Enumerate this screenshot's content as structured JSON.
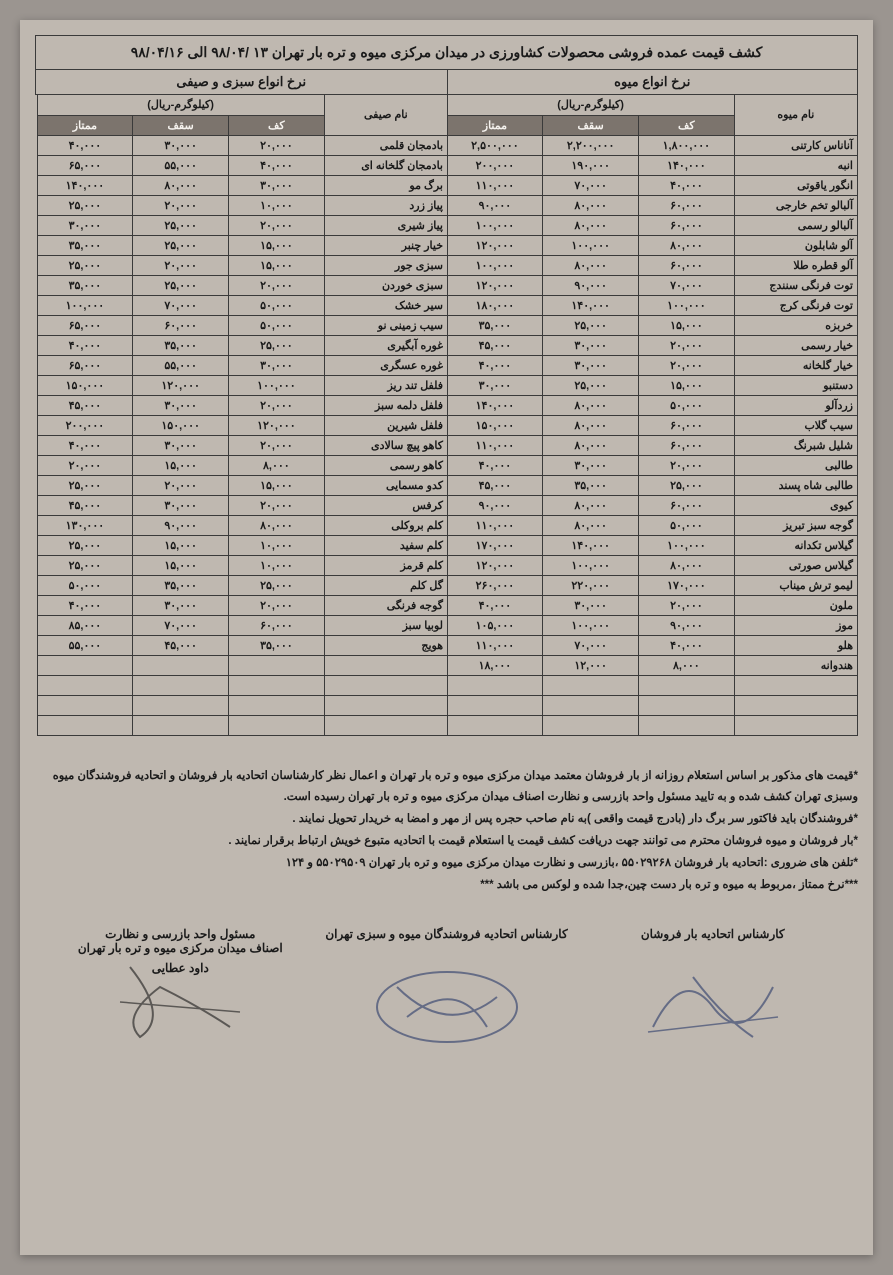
{
  "title": "کشف قیمت عمده فروشی محصولات کشاورزی در میدان مرکزی میوه و تره بار تهران ۱۳ /۹۸/۰۴  الی  ۹۸/۰۴/۱۶",
  "section_fruit": "نرخ انواع میوه",
  "section_veg": "نرخ انواع سبزی و صیفی",
  "unit_label": "(کیلوگرم-ریال)",
  "col_name_fruit": "نام میوه",
  "col_name_veg": "نام صیفی",
  "col_floor": "کف",
  "col_ceil": "سقف",
  "col_premium": "ممتاز",
  "fruits": [
    {
      "name": "آناناس کارتنی",
      "f": "۱,۸۰۰,۰۰۰",
      "c": "۲,۲۰۰,۰۰۰",
      "p": "۲,۵۰۰,۰۰۰"
    },
    {
      "name": "انبه",
      "f": "۱۴۰,۰۰۰",
      "c": "۱۹۰,۰۰۰",
      "p": "۲۰۰,۰۰۰"
    },
    {
      "name": "انگور یاقوتی",
      "f": "۴۰,۰۰۰",
      "c": "۷۰,۰۰۰",
      "p": "۱۱۰,۰۰۰"
    },
    {
      "name": "آلبالو تخم خارجی",
      "f": "۶۰,۰۰۰",
      "c": "۸۰,۰۰۰",
      "p": "۹۰,۰۰۰"
    },
    {
      "name": "آلبالو رسمی",
      "f": "۶۰,۰۰۰",
      "c": "۸۰,۰۰۰",
      "p": "۱۰۰,۰۰۰"
    },
    {
      "name": "آلو شابلون",
      "f": "۸۰,۰۰۰",
      "c": "۱۰۰,۰۰۰",
      "p": "۱۲۰,۰۰۰"
    },
    {
      "name": "آلو قطره طلا",
      "f": "۶۰,۰۰۰",
      "c": "۸۰,۰۰۰",
      "p": "۱۰۰,۰۰۰"
    },
    {
      "name": "توت فرنگی سنندج",
      "f": "۷۰,۰۰۰",
      "c": "۹۰,۰۰۰",
      "p": "۱۲۰,۰۰۰"
    },
    {
      "name": "توت فرنگی کرج",
      "f": "۱۰۰,۰۰۰",
      "c": "۱۴۰,۰۰۰",
      "p": "۱۸۰,۰۰۰"
    },
    {
      "name": "خربزه",
      "f": "۱۵,۰۰۰",
      "c": "۲۵,۰۰۰",
      "p": "۳۵,۰۰۰"
    },
    {
      "name": "خیار رسمی",
      "f": "۲۰,۰۰۰",
      "c": "۳۰,۰۰۰",
      "p": "۴۵,۰۰۰"
    },
    {
      "name": "خیار گلخانه",
      "f": "۲۰,۰۰۰",
      "c": "۳۰,۰۰۰",
      "p": "۴۰,۰۰۰"
    },
    {
      "name": "دستنبو",
      "f": "۱۵,۰۰۰",
      "c": "۲۵,۰۰۰",
      "p": "۳۰,۰۰۰"
    },
    {
      "name": "زردآلو",
      "f": "۵۰,۰۰۰",
      "c": "۸۰,۰۰۰",
      "p": "۱۴۰,۰۰۰"
    },
    {
      "name": "سیب گلاب",
      "f": "۶۰,۰۰۰",
      "c": "۸۰,۰۰۰",
      "p": "۱۵۰,۰۰۰"
    },
    {
      "name": "شلیل شبرنگ",
      "f": "۶۰,۰۰۰",
      "c": "۸۰,۰۰۰",
      "p": "۱۱۰,۰۰۰"
    },
    {
      "name": "طالبی",
      "f": "۲۰,۰۰۰",
      "c": "۳۰,۰۰۰",
      "p": "۴۰,۰۰۰"
    },
    {
      "name": "طالبی شاه پسند",
      "f": "۲۵,۰۰۰",
      "c": "۳۵,۰۰۰",
      "p": "۴۵,۰۰۰"
    },
    {
      "name": "کیوی",
      "f": "۶۰,۰۰۰",
      "c": "۸۰,۰۰۰",
      "p": "۹۰,۰۰۰"
    },
    {
      "name": "گوجه سبز تبریز",
      "f": "۵۰,۰۰۰",
      "c": "۸۰,۰۰۰",
      "p": "۱۱۰,۰۰۰"
    },
    {
      "name": "گیلاس تکدانه",
      "f": "۱۰۰,۰۰۰",
      "c": "۱۴۰,۰۰۰",
      "p": "۱۷۰,۰۰۰"
    },
    {
      "name": "گیلاس صورتی",
      "f": "۸۰,۰۰۰",
      "c": "۱۰۰,۰۰۰",
      "p": "۱۲۰,۰۰۰"
    },
    {
      "name": "لیمو ترش میناب",
      "f": "۱۷۰,۰۰۰",
      "c": "۲۲۰,۰۰۰",
      "p": "۲۶۰,۰۰۰"
    },
    {
      "name": "ملون",
      "f": "۲۰,۰۰۰",
      "c": "۳۰,۰۰۰",
      "p": "۴۰,۰۰۰"
    },
    {
      "name": "موز",
      "f": "۹۰,۰۰۰",
      "c": "۱۰۰,۰۰۰",
      "p": "۱۰۵,۰۰۰"
    },
    {
      "name": "هلو",
      "f": "۴۰,۰۰۰",
      "c": "۷۰,۰۰۰",
      "p": "۱۱۰,۰۰۰"
    },
    {
      "name": "هندوانه",
      "f": "۸,۰۰۰",
      "c": "۱۲,۰۰۰",
      "p": "۱۸,۰۰۰"
    },
    {
      "name": "",
      "f": "",
      "c": "",
      "p": ""
    },
    {
      "name": "",
      "f": "",
      "c": "",
      "p": ""
    },
    {
      "name": "",
      "f": "",
      "c": "",
      "p": ""
    }
  ],
  "vegs": [
    {
      "name": "بادمجان قلمی",
      "f": "۲۰,۰۰۰",
      "c": "۳۰,۰۰۰",
      "p": "۴۰,۰۰۰"
    },
    {
      "name": "بادمجان گلخانه ای",
      "f": "۴۰,۰۰۰",
      "c": "۵۵,۰۰۰",
      "p": "۶۵,۰۰۰"
    },
    {
      "name": "برگ مو",
      "f": "۳۰,۰۰۰",
      "c": "۸۰,۰۰۰",
      "p": "۱۴۰,۰۰۰"
    },
    {
      "name": "پیاز زرد",
      "f": "۱۰,۰۰۰",
      "c": "۲۰,۰۰۰",
      "p": "۲۵,۰۰۰"
    },
    {
      "name": "پیاز شیری",
      "f": "۲۰,۰۰۰",
      "c": "۲۵,۰۰۰",
      "p": "۳۰,۰۰۰"
    },
    {
      "name": "خیار چنبر",
      "f": "۱۵,۰۰۰",
      "c": "۲۵,۰۰۰",
      "p": "۳۵,۰۰۰"
    },
    {
      "name": "سبزی جور",
      "f": "۱۵,۰۰۰",
      "c": "۲۰,۰۰۰",
      "p": "۲۵,۰۰۰"
    },
    {
      "name": "سبزی خوردن",
      "f": "۲۰,۰۰۰",
      "c": "۲۵,۰۰۰",
      "p": "۳۵,۰۰۰"
    },
    {
      "name": "سیر خشک",
      "f": "۵۰,۰۰۰",
      "c": "۷۰,۰۰۰",
      "p": "۱۰۰,۰۰۰"
    },
    {
      "name": "سیب زمینی نو",
      "f": "۵۰,۰۰۰",
      "c": "۶۰,۰۰۰",
      "p": "۶۵,۰۰۰"
    },
    {
      "name": "غوره آبگیری",
      "f": "۲۵,۰۰۰",
      "c": "۳۵,۰۰۰",
      "p": "۴۰,۰۰۰"
    },
    {
      "name": "غوره عسگری",
      "f": "۳۰,۰۰۰",
      "c": "۵۵,۰۰۰",
      "p": "۶۵,۰۰۰"
    },
    {
      "name": "فلفل تند ریز",
      "f": "۱۰۰,۰۰۰",
      "c": "۱۲۰,۰۰۰",
      "p": "۱۵۰,۰۰۰"
    },
    {
      "name": "فلفل دلمه سبز",
      "f": "۲۰,۰۰۰",
      "c": "۳۰,۰۰۰",
      "p": "۴۵,۰۰۰"
    },
    {
      "name": "فلفل شیرین",
      "f": "۱۲۰,۰۰۰",
      "c": "۱۵۰,۰۰۰",
      "p": "۲۰۰,۰۰۰"
    },
    {
      "name": "کاهو پیچ سالادی",
      "f": "۲۰,۰۰۰",
      "c": "۳۰,۰۰۰",
      "p": "۴۰,۰۰۰"
    },
    {
      "name": "کاهو رسمی",
      "f": "۸,۰۰۰",
      "c": "۱۵,۰۰۰",
      "p": "۲۰,۰۰۰"
    },
    {
      "name": "کدو مسمایی",
      "f": "۱۵,۰۰۰",
      "c": "۲۰,۰۰۰",
      "p": "۲۵,۰۰۰"
    },
    {
      "name": "کرفس",
      "f": "۲۰,۰۰۰",
      "c": "۳۰,۰۰۰",
      "p": "۴۵,۰۰۰"
    },
    {
      "name": "کلم بروکلی",
      "f": "۸۰,۰۰۰",
      "c": "۹۰,۰۰۰",
      "p": "۱۳۰,۰۰۰"
    },
    {
      "name": "کلم سفید",
      "f": "۱۰,۰۰۰",
      "c": "۱۵,۰۰۰",
      "p": "۲۵,۰۰۰"
    },
    {
      "name": "کلم قرمز",
      "f": "۱۰,۰۰۰",
      "c": "۱۵,۰۰۰",
      "p": "۲۵,۰۰۰"
    },
    {
      "name": "گل کلم",
      "f": "۲۵,۰۰۰",
      "c": "۳۵,۰۰۰",
      "p": "۵۰,۰۰۰"
    },
    {
      "name": "گوجه فرنگی",
      "f": "۲۰,۰۰۰",
      "c": "۳۰,۰۰۰",
      "p": "۴۰,۰۰۰"
    },
    {
      "name": "لوبیا سبز",
      "f": "۶۰,۰۰۰",
      "c": "۷۰,۰۰۰",
      "p": "۸۵,۰۰۰"
    },
    {
      "name": "هویج",
      "f": "۳۵,۰۰۰",
      "c": "۴۵,۰۰۰",
      "p": "۵۵,۰۰۰"
    },
    {
      "name": "",
      "f": "",
      "c": "",
      "p": ""
    },
    {
      "name": "",
      "f": "",
      "c": "",
      "p": ""
    },
    {
      "name": "",
      "f": "",
      "c": "",
      "p": ""
    },
    {
      "name": "",
      "f": "",
      "c": "",
      "p": ""
    }
  ],
  "notes": [
    "*قیمت های مذکور بر اساس استعلام روزانه از بار فروشان معتمد میدان مرکزی میوه و تره بار تهران و اعمال نظر کارشناسان اتحادیه بار فروشان و اتحادیه فروشندگان میوه وسبزی تهران کشف شده و به تایید مسئول واحد بازرسی و نظارت اصناف میدان مرکزی میوه و تره بار تهران رسیده است.",
    "*فروشندگان باید فاکتور سر برگ دار (بادرج قیمت واقعی )به نام صاحب حجره پس از مهر و امضا به خریدار تحویل نمایند .",
    "*بار فروشان و میوه فروشان محترم می توانند جهت دریافت کشف قیمت  یا استعلام قیمت با اتحادیه متبوع خویش ارتباط برقرار نمایند .",
    "*تلفن های ضروری :اتحادیه بار فروشان ۵۵۰۲۹۲۶۸  ،بازرسی و نظارت میدان مرکزی میوه و تره بار  تهران ۵۵۰۲۹۵۰۹  و ۱۲۴",
    "***نرخ ممتاز ،مربوط به میوه و تره بار دست چین،جدا شده و لوکس می باشد ***"
  ],
  "signers": {
    "right": "کارشناس اتحادیه بار فروشان",
    "center": "کارشناس اتحادیه فروشندگان میوه و سبزی تهران",
    "left_line1": "مسئول واحد بازرسی و نظارت",
    "left_line2": "اصناف میدان مرکزی میوه و تره بار  تهران",
    "left_name": "داود عطایی"
  },
  "style": {
    "bg": "#9b9590",
    "paper": "#bfb8b0",
    "border": "#3a3a3a",
    "th_bg": "#7c746d",
    "th_fg": "#f5f2ee",
    "text": "#1a1a1a"
  }
}
